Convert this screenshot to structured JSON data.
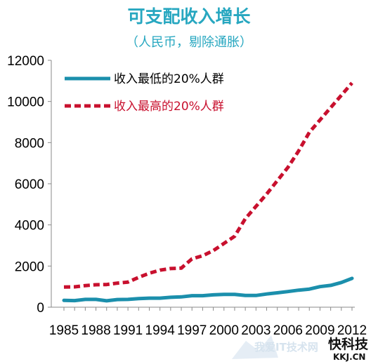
{
  "chart_data": {
    "type": "line",
    "title": "可支配收入增长",
    "subtitle": "（人民币，剔除通胀）",
    "xlabel": "",
    "ylabel": "",
    "ylim": [
      0,
      12000
    ],
    "yticks": [
      0,
      2000,
      4000,
      6000,
      8000,
      10000,
      12000
    ],
    "ytick_labels": [
      "0",
      "2000",
      "4000",
      "6000",
      "8000",
      "10000",
      "12000"
    ],
    "xlim": [
      1985,
      2012
    ],
    "xticks": [
      1985,
      1988,
      1991,
      1994,
      1997,
      2000,
      2003,
      2006,
      2009,
      2012
    ],
    "xtick_labels": [
      "1985",
      "1988",
      "1991",
      "1994",
      "1997",
      "2000",
      "2003",
      "2006",
      "2009",
      "2012"
    ],
    "grid": false,
    "legend": "top-left",
    "x": [
      1985,
      1986,
      1987,
      1988,
      1989,
      1990,
      1991,
      1992,
      1993,
      1994,
      1995,
      1996,
      1997,
      1998,
      1999,
      2000,
      2001,
      2002,
      2003,
      2004,
      2005,
      2006,
      2007,
      2008,
      2009,
      2010,
      2011,
      2012
    ],
    "series": [
      {
        "name": "收入最低的20%人群",
        "color": "#1b8fac",
        "style": "solid",
        "values": [
          330,
          320,
          380,
          380,
          310,
          370,
          380,
          420,
          440,
          440,
          480,
          500,
          560,
          560,
          600,
          620,
          620,
          570,
          570,
          640,
          700,
          760,
          830,
          880,
          1000,
          1060,
          1200,
          1400
        ]
      },
      {
        "name": "收入最高的20%人群",
        "color": "#c8102e",
        "style": "dashed",
        "values": [
          980,
          990,
          1050,
          1090,
          1100,
          1170,
          1220,
          1450,
          1650,
          1800,
          1880,
          1900,
          2350,
          2500,
          2750,
          3100,
          3450,
          4300,
          4900,
          5500,
          6150,
          6800,
          7600,
          8500,
          9100,
          9700,
          10300,
          10900
        ]
      }
    ]
  },
  "watermark": {
    "text_a": "我爱IT技术网",
    "text_b": "快科技",
    "text_c": "KKJ.CN"
  }
}
